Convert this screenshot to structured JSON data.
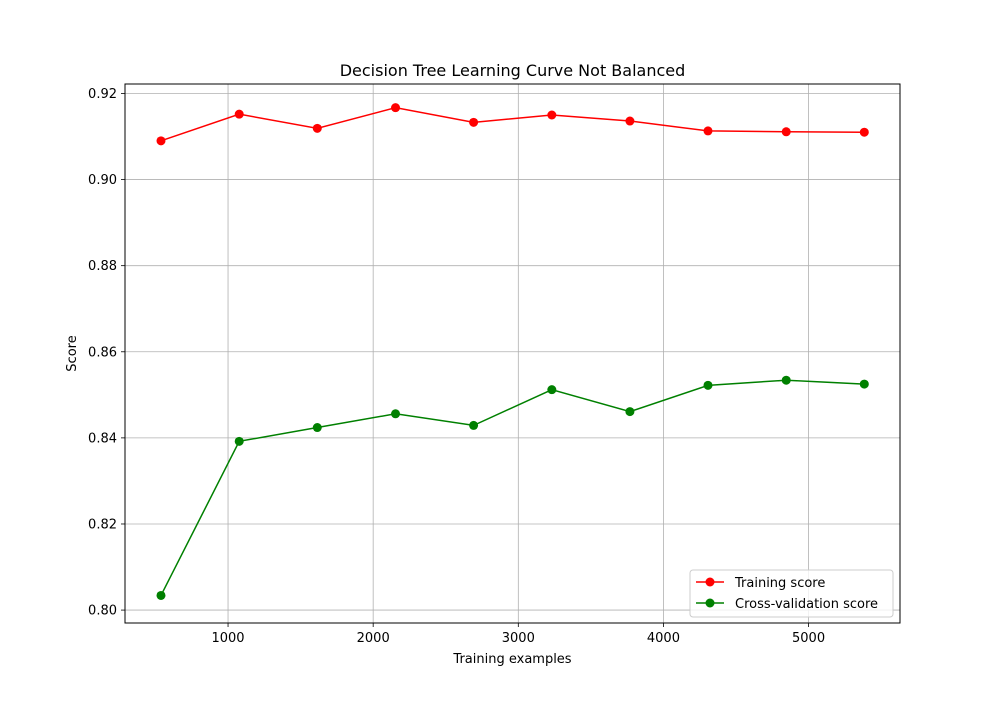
{
  "chart_data": {
    "type": "line",
    "title": "Decision Tree Learning Curve Not Balanced",
    "xlabel": "Training examples",
    "ylabel": "Score",
    "xlim": [
      290,
      5630
    ],
    "ylim": [
      0.797,
      0.9222
    ],
    "x_ticks": [
      1000,
      2000,
      3000,
      4000,
      5000
    ],
    "y_ticks": [
      0.8,
      0.82,
      0.84,
      0.86,
      0.88,
      0.9,
      0.92
    ],
    "y_tick_labels": [
      "0.80",
      "0.82",
      "0.84",
      "0.86",
      "0.88",
      "0.90",
      "0.92"
    ],
    "x": [
      538,
      1077,
      1615,
      2154,
      2692,
      3231,
      3769,
      4307,
      4846,
      5384
    ],
    "series": [
      {
        "name": "Training score",
        "color": "#ff0000",
        "values": [
          0.909,
          0.9152,
          0.9119,
          0.9167,
          0.9133,
          0.915,
          0.9136,
          0.9113,
          0.9111,
          0.911
        ]
      },
      {
        "name": "Cross-validation score",
        "color": "#008000",
        "values": [
          0.8034,
          0.8392,
          0.8424,
          0.8456,
          0.8429,
          0.8512,
          0.8461,
          0.8522,
          0.8534,
          0.8525
        ]
      }
    ],
    "grid": true,
    "legend_position": "lower right"
  }
}
